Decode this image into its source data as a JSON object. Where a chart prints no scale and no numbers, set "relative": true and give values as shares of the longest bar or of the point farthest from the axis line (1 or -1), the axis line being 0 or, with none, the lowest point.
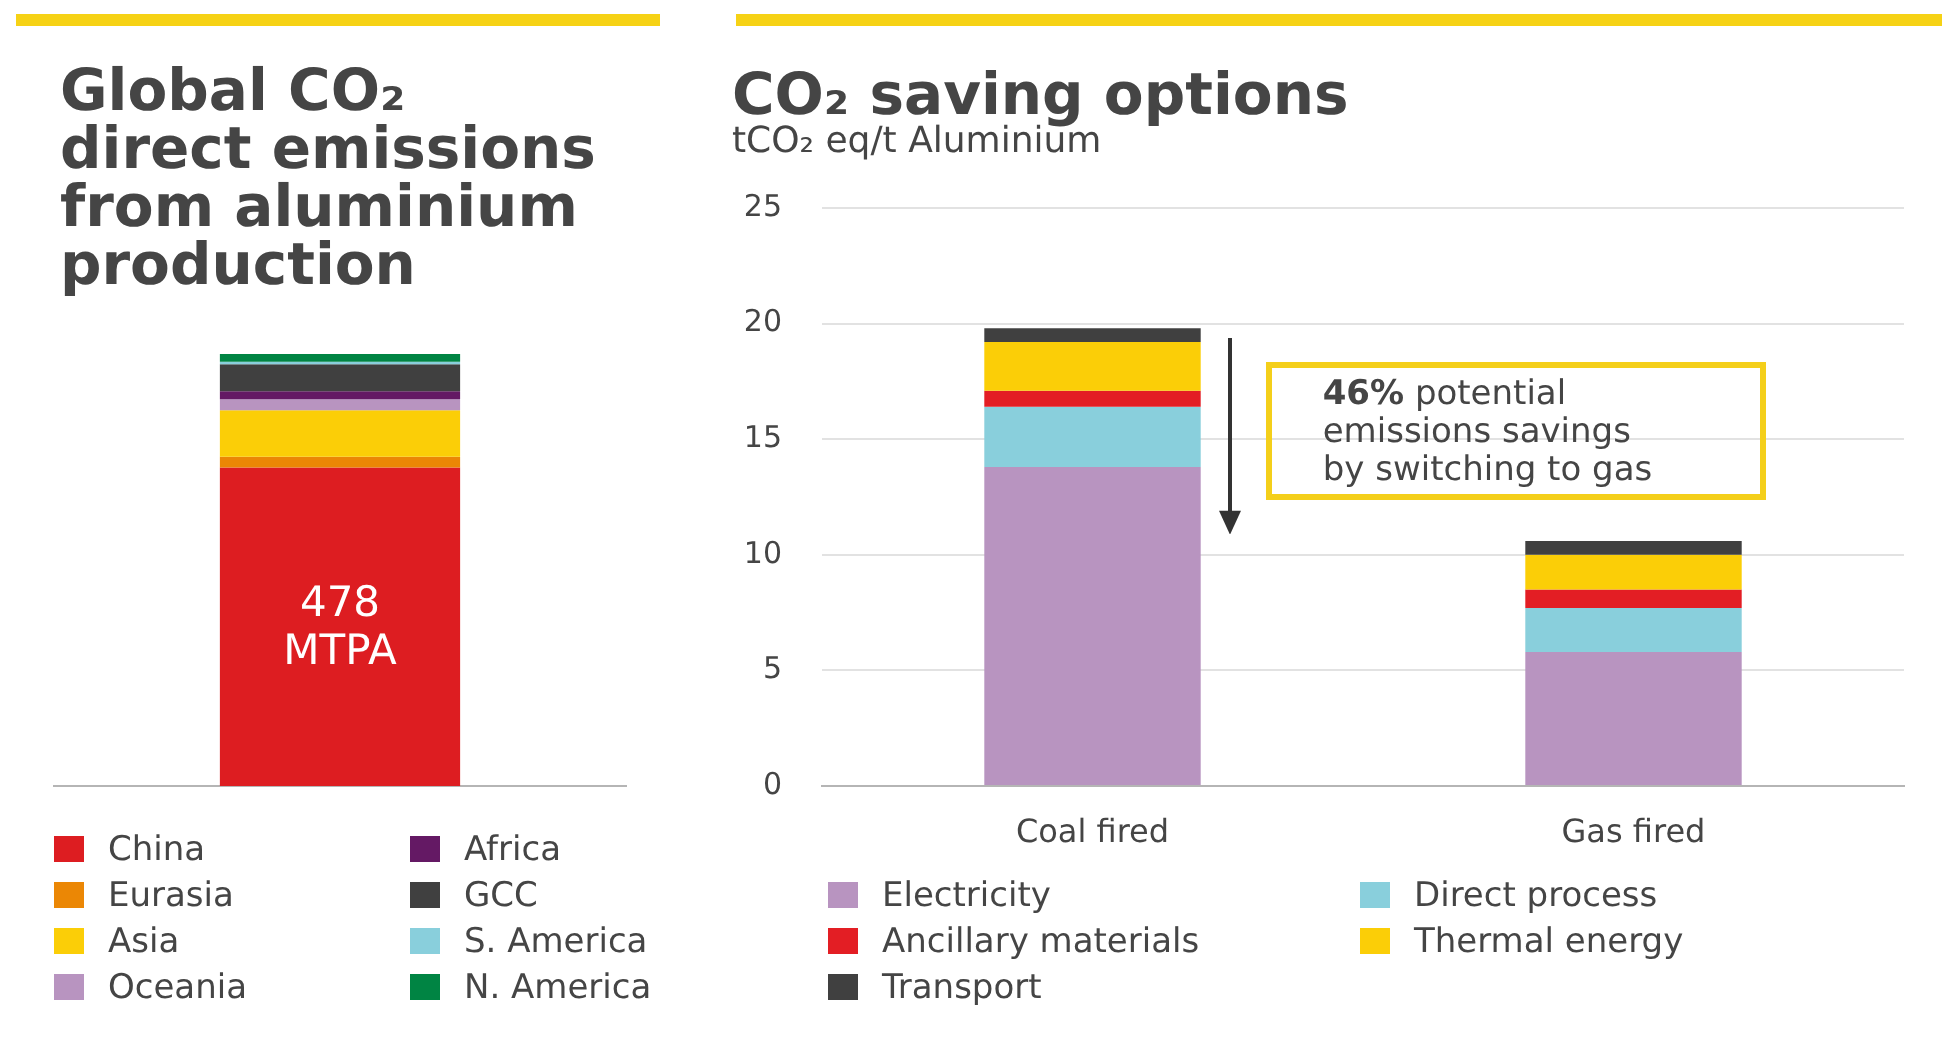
{
  "chart_data": [
    {
      "type": "bar",
      "title": "Global CO₂ direct emissions from aluminium production",
      "categories": [
        null
      ],
      "stacked": true,
      "relative": true,
      "legend": "bottom",
      "series": [
        {
          "name": "China",
          "color": "#dd1d21",
          "values": [
            0.737
          ]
        },
        {
          "name": "Eurasia",
          "color": "#eb8705",
          "values": [
            0.025
          ]
        },
        {
          "name": "Asia",
          "color": "#fbce07",
          "values": [
            0.108
          ]
        },
        {
          "name": "Oceania",
          "color": "#b894c0",
          "values": [
            0.025
          ]
        },
        {
          "name": "Africa",
          "color": "#641964",
          "values": [
            0.019
          ]
        },
        {
          "name": "GCC",
          "color": "#404040",
          "values": [
            0.062
          ]
        },
        {
          "name": "S. America",
          "color": "#89cfdc",
          "values": [
            0.006
          ]
        },
        {
          "name": "N. America",
          "color": "#008443",
          "values": [
            0.018
          ]
        }
      ],
      "annotations": [
        "478 MTPA"
      ]
    },
    {
      "type": "bar",
      "title": "CO₂ saving options",
      "subtitle": "tCO₂ eq/t Aluminium",
      "categories": [
        "Coal fired",
        "Gas fired"
      ],
      "stacked": true,
      "ylim": [
        0,
        25
      ],
      "yticks": [
        0,
        5,
        10,
        15,
        20,
        25
      ],
      "grid": "y",
      "legend": "bottom",
      "series": [
        {
          "name": "Electricity",
          "color": "#b894c0",
          "values": [
            13.8,
            5.8
          ]
        },
        {
          "name": "Direct process",
          "color": "#89cfdc",
          "values": [
            2.6,
            1.9
          ]
        },
        {
          "name": "Ancillary materials",
          "color": "#e31e24",
          "values": [
            0.7,
            0.8
          ]
        },
        {
          "name": "Thermal energy",
          "color": "#fbce07",
          "values": [
            2.1,
            1.5
          ]
        },
        {
          "name": "Transport",
          "color": "#404040",
          "values": [
            0.6,
            0.6
          ]
        }
      ],
      "annotations": [
        "46% potential emissions savings by switching to gas"
      ]
    }
  ]
}
